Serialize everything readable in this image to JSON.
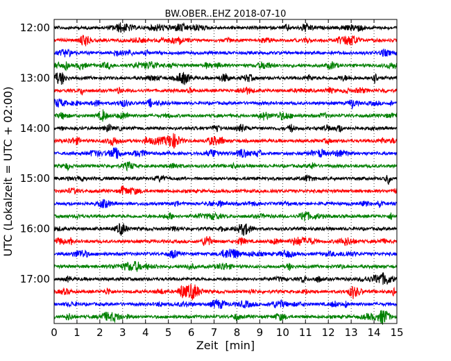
{
  "chart_data": {
    "type": "line",
    "title": "BW.OBER..EHZ 2018-07-10",
    "xlabel": "Zeit  [min]",
    "ylabel": "UTC (Lokalzeit = UTC + 02:00)",
    "xlim": [
      0,
      15
    ],
    "x_ticks": [
      "0",
      "1",
      "2",
      "3",
      "4",
      "5",
      "6",
      "7",
      "8",
      "9",
      "10",
      "11",
      "12",
      "13",
      "14",
      "15"
    ],
    "y_tick_labels": [
      "12:00",
      "13:00",
      "14:00",
      "15:00",
      "16:00",
      "17:00"
    ],
    "grid": "vertical dotted",
    "row_interval_minutes": 15,
    "colors": [
      "#000000",
      "#ff0000",
      "#0000ff",
      "#008000"
    ],
    "series": [
      {
        "start": "12:00",
        "color": "#000000"
      },
      {
        "start": "12:15",
        "color": "#ff0000"
      },
      {
        "start": "12:30",
        "color": "#0000ff"
      },
      {
        "start": "12:45",
        "color": "#008000"
      },
      {
        "start": "13:00",
        "color": "#000000"
      },
      {
        "start": "13:15",
        "color": "#ff0000"
      },
      {
        "start": "13:30",
        "color": "#0000ff"
      },
      {
        "start": "13:45",
        "color": "#008000"
      },
      {
        "start": "14:00",
        "color": "#000000"
      },
      {
        "start": "14:15",
        "color": "#ff0000"
      },
      {
        "start": "14:30",
        "color": "#0000ff"
      },
      {
        "start": "14:45",
        "color": "#008000"
      },
      {
        "start": "15:00",
        "color": "#000000"
      },
      {
        "start": "15:15",
        "color": "#ff0000"
      },
      {
        "start": "15:30",
        "color": "#0000ff"
      },
      {
        "start": "15:45",
        "color": "#008000"
      },
      {
        "start": "16:00",
        "color": "#000000"
      },
      {
        "start": "16:15",
        "color": "#ff0000"
      },
      {
        "start": "16:30",
        "color": "#0000ff"
      },
      {
        "start": "16:45",
        "color": "#008000"
      },
      {
        "start": "17:00",
        "color": "#000000"
      },
      {
        "start": "17:15",
        "color": "#ff0000"
      },
      {
        "start": "17:30",
        "color": "#0000ff"
      },
      {
        "start": "17:45",
        "color": "#008000"
      }
    ]
  }
}
